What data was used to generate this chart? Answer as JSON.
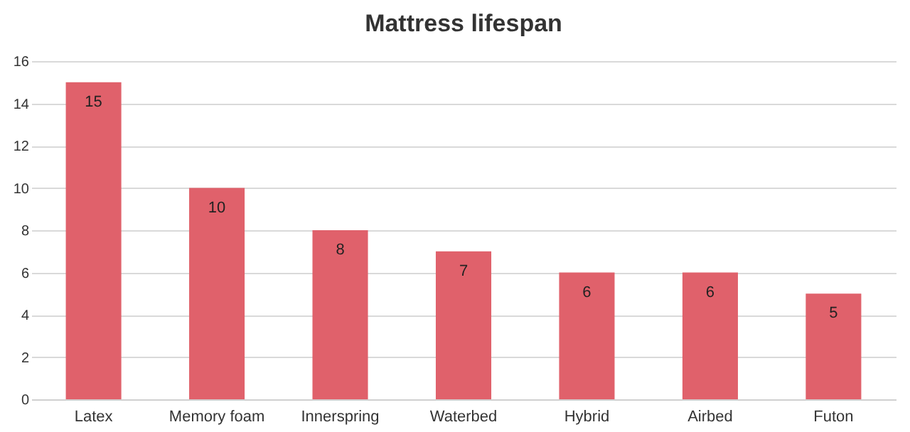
{
  "chart_data": {
    "type": "bar",
    "title": "Mattress lifespan",
    "categories": [
      "Latex",
      "Memory foam",
      "Innerspring",
      "Waterbed",
      "Hybrid",
      "Airbed",
      "Futon"
    ],
    "values": [
      15,
      10,
      8,
      7,
      6,
      6,
      5
    ],
    "color": "#e0616b",
    "ylim": [
      0,
      16
    ],
    "yticks": [
      0,
      2,
      4,
      6,
      8,
      10,
      12,
      14,
      16
    ],
    "grid": "y",
    "data_labels": true
  }
}
